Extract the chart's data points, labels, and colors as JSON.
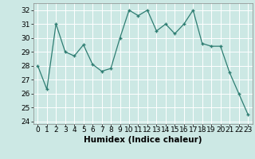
{
  "x": [
    0,
    1,
    2,
    3,
    4,
    5,
    6,
    7,
    8,
    9,
    10,
    11,
    12,
    13,
    14,
    15,
    16,
    17,
    18,
    19,
    20,
    21,
    22,
    23
  ],
  "y": [
    28,
    26.3,
    31,
    29,
    28.7,
    29.5,
    28.1,
    27.6,
    27.8,
    30,
    32,
    31.6,
    32,
    30.5,
    31,
    30.3,
    31,
    32,
    29.6,
    29.4,
    29.4,
    27.5,
    26,
    24.5
  ],
  "line_color": "#2e7d72",
  "marker": "+",
  "marker_color": "#2e7d72",
  "bg_color": "#cce8e4",
  "grid_color": "#ffffff",
  "xlabel": "Humidex (Indice chaleur)",
  "xlabel_fontsize": 7.5,
  "tick_fontsize": 6.5,
  "ylim": [
    23.8,
    32.5
  ],
  "xlim": [
    -0.5,
    23.5
  ],
  "yticks": [
    24,
    25,
    26,
    27,
    28,
    29,
    30,
    31,
    32
  ],
  "xticks": [
    0,
    1,
    2,
    3,
    4,
    5,
    6,
    7,
    8,
    9,
    10,
    11,
    12,
    13,
    14,
    15,
    16,
    17,
    18,
    19,
    20,
    21,
    22,
    23
  ]
}
